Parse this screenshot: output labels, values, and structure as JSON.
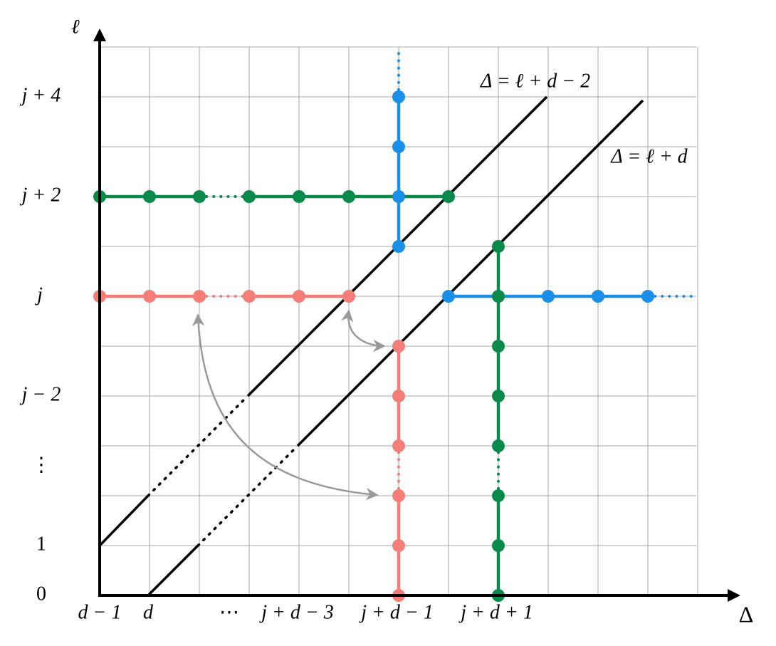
{
  "axes": {
    "y_label": "ℓ",
    "x_label": "Δ"
  },
  "y_labels": [
    "j + 4",
    "j + 2",
    "j",
    "j − 2",
    "⋮",
    "1",
    "0"
  ],
  "x_labels": [
    "d − 1",
    "d",
    "⋯",
    "j + d − 3",
    "j + d − 1",
    "j + d + 1"
  ],
  "lines": [
    {
      "label": "Δ = ℓ + d − 2"
    },
    {
      "label": "Δ = ℓ + d"
    }
  ]
}
